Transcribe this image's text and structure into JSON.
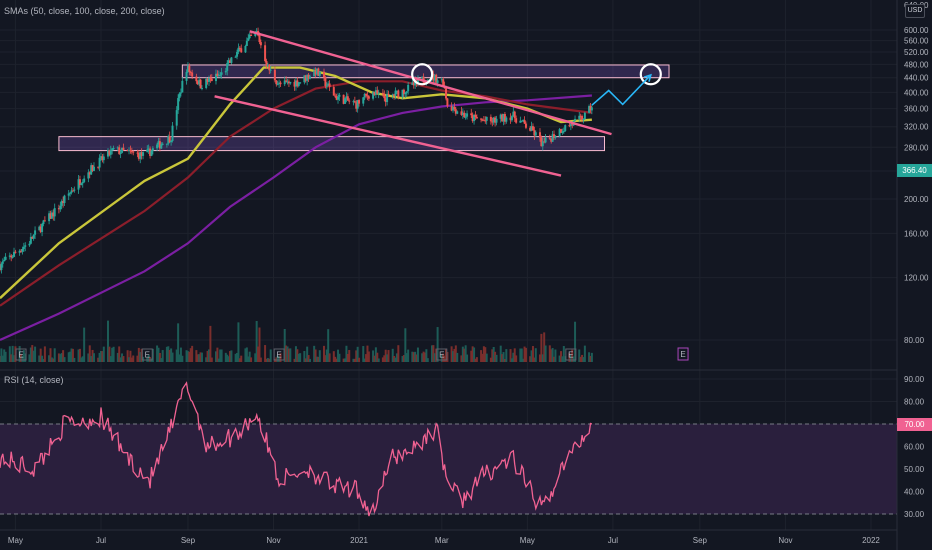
{
  "colors": {
    "background": "#131722",
    "up": "#26a69a",
    "down": "#ef5350",
    "sma50": "#c9c63a",
    "sma100": "#8b1e2b",
    "sma200": "#7b1fa2",
    "pattern": "#f06292",
    "zone": "#7e57c2",
    "projection": "#29b6f6",
    "rsi_line": "#f06292",
    "rsi_band": "#2a1f3d"
  },
  "price_pane": {
    "indicator_label": "SMAs (50, close, 100, close, 200, close)",
    "currency": "USD",
    "last_price_label": "366.40",
    "top_clipped_label": "640.00"
  },
  "rsi_pane": {
    "indicator_label": "RSI (14, close)",
    "last_value_label": "70.00"
  },
  "earnings_marker": "E",
  "chart_data": {
    "type": "candlestick",
    "x_ticks": [
      "May",
      "Jul",
      "Sep",
      "Nov",
      "2021",
      "Mar",
      "May",
      "Jul",
      "Sep",
      "Nov",
      "2022"
    ],
    "y_ticks": [
      "80.00",
      "120.00",
      "160.00",
      "200.00",
      "240.00",
      "280.00",
      "320.00",
      "360.00",
      "400.00",
      "440.00",
      "480.00",
      "520.00",
      "560.00",
      "600.00"
    ],
    "y_scale": "log",
    "close_keypoints": [
      {
        "date": "2020-04-20",
        "close": 130
      },
      {
        "date": "2020-05-10",
        "close": 150
      },
      {
        "date": "2020-06-01",
        "close": 190
      },
      {
        "date": "2020-06-20",
        "close": 235
      },
      {
        "date": "2020-07-10",
        "close": 275
      },
      {
        "date": "2020-08-01",
        "close": 265
      },
      {
        "date": "2020-08-20",
        "close": 300
      },
      {
        "date": "2020-08-31",
        "close": 470
      },
      {
        "date": "2020-09-10",
        "close": 420
      },
      {
        "date": "2020-09-25",
        "close": 450
      },
      {
        "date": "2020-10-10",
        "close": 540
      },
      {
        "date": "2020-10-20",
        "close": 590
      },
      {
        "date": "2020-10-28",
        "close": 470
      },
      {
        "date": "2020-11-05",
        "close": 420
      },
      {
        "date": "2020-11-20",
        "close": 430
      },
      {
        "date": "2020-12-01",
        "close": 460
      },
      {
        "date": "2020-12-15",
        "close": 390
      },
      {
        "date": "2020-12-30",
        "close": 370
      },
      {
        "date": "2021-01-10",
        "close": 400
      },
      {
        "date": "2021-01-20",
        "close": 385
      },
      {
        "date": "2021-02-05",
        "close": 410
      },
      {
        "date": "2021-02-20",
        "close": 445
      },
      {
        "date": "2021-03-02",
        "close": 430
      },
      {
        "date": "2021-03-05",
        "close": 370
      },
      {
        "date": "2021-03-20",
        "close": 340
      },
      {
        "date": "2021-04-05",
        "close": 330
      },
      {
        "date": "2021-04-20",
        "close": 345
      },
      {
        "date": "2021-05-05",
        "close": 310
      },
      {
        "date": "2021-05-12",
        "close": 285
      },
      {
        "date": "2021-05-25",
        "close": 315
      },
      {
        "date": "2021-06-05",
        "close": 330
      },
      {
        "date": "2021-06-12",
        "close": 345
      },
      {
        "date": "2021-06-16",
        "close": 366.4
      }
    ],
    "sma_keypoints": {
      "sma50": [
        {
          "date": "2020-04-20",
          "value": 105
        },
        {
          "date": "2020-06-01",
          "value": 150
        },
        {
          "date": "2020-08-01",
          "value": 225
        },
        {
          "date": "2020-09-01",
          "value": 260
        },
        {
          "date": "2020-10-01",
          "value": 370
        },
        {
          "date": "2020-10-25",
          "value": 470
        },
        {
          "date": "2020-11-20",
          "value": 470
        },
        {
          "date": "2020-12-15",
          "value": 445
        },
        {
          "date": "2021-01-10",
          "value": 400
        },
        {
          "date": "2021-02-01",
          "value": 385
        },
        {
          "date": "2021-03-01",
          "value": 395
        },
        {
          "date": "2021-04-01",
          "value": 385
        },
        {
          "date": "2021-05-01",
          "value": 360
        },
        {
          "date": "2021-05-25",
          "value": 330
        },
        {
          "date": "2021-06-16",
          "value": 335
        }
      ],
      "sma100": [
        {
          "date": "2020-04-20",
          "value": 100
        },
        {
          "date": "2020-06-01",
          "value": 130
        },
        {
          "date": "2020-08-01",
          "value": 185
        },
        {
          "date": "2020-09-01",
          "value": 230
        },
        {
          "date": "2020-10-01",
          "value": 300
        },
        {
          "date": "2020-11-01",
          "value": 360
        },
        {
          "date": "2020-12-01",
          "value": 410
        },
        {
          "date": "2021-01-01",
          "value": 430
        },
        {
          "date": "2021-02-01",
          "value": 430
        },
        {
          "date": "2021-03-01",
          "value": 405
        },
        {
          "date": "2021-04-01",
          "value": 390
        },
        {
          "date": "2021-05-01",
          "value": 370
        },
        {
          "date": "2021-06-16",
          "value": 350
        }
      ],
      "sma200": [
        {
          "date": "2020-04-20",
          "value": 80
        },
        {
          "date": "2020-06-01",
          "value": 95
        },
        {
          "date": "2020-08-01",
          "value": 125
        },
        {
          "date": "2020-09-01",
          "value": 150
        },
        {
          "date": "2020-10-01",
          "value": 190
        },
        {
          "date": "2020-11-01",
          "value": 230
        },
        {
          "date": "2020-12-01",
          "value": 280
        },
        {
          "date": "2021-01-01",
          "value": 325
        },
        {
          "date": "2021-02-01",
          "value": 350
        },
        {
          "date": "2021-03-01",
          "value": 365
        },
        {
          "date": "2021-04-01",
          "value": 375
        },
        {
          "date": "2021-05-01",
          "value": 380
        },
        {
          "date": "2021-06-16",
          "value": 392
        }
      ]
    },
    "annotations": {
      "zones": [
        {
          "from": "2020-08-28",
          "to": "2021-08-10",
          "low": 440,
          "high": 478
        },
        {
          "from": "2020-06-01",
          "to": "2021-06-25",
          "low": 274,
          "high": 300
        }
      ],
      "falling_wedge": {
        "upper": [
          {
            "date": "2020-10-15",
            "value": 595
          },
          {
            "date": "2021-06-30",
            "value": 305
          }
        ],
        "lower": [
          {
            "date": "2020-09-20",
            "value": 390
          },
          {
            "date": "2021-05-25",
            "value": 233
          }
        ]
      },
      "circles": [
        {
          "date": "2021-02-15",
          "value": 450
        },
        {
          "date": "2021-07-28",
          "value": 450
        }
      ],
      "projection_path": [
        {
          "date": "2021-06-16",
          "value": 368
        },
        {
          "date": "2021-06-28",
          "value": 405
        },
        {
          "date": "2021-07-08",
          "value": 370
        },
        {
          "date": "2021-07-28",
          "value": 448
        }
      ]
    },
    "rsi": {
      "y_ticks": [
        "30.00",
        "40.00",
        "50.00",
        "60.00",
        "70.00",
        "80.00",
        "90.00"
      ],
      "band": [
        30,
        70
      ],
      "keypoints": [
        {
          "date": "2020-04-20",
          "value": 55
        },
        {
          "date": "2020-05-15",
          "value": 50
        },
        {
          "date": "2020-06-05",
          "value": 70
        },
        {
          "date": "2020-07-01",
          "value": 73
        },
        {
          "date": "2020-07-20",
          "value": 55
        },
        {
          "date": "2020-08-05",
          "value": 45
        },
        {
          "date": "2020-08-20",
          "value": 68
        },
        {
          "date": "2020-08-31",
          "value": 88
        },
        {
          "date": "2020-09-15",
          "value": 60
        },
        {
          "date": "2020-10-05",
          "value": 65
        },
        {
          "date": "2020-10-20",
          "value": 75
        },
        {
          "date": "2020-11-05",
          "value": 45
        },
        {
          "date": "2020-11-25",
          "value": 50
        },
        {
          "date": "2020-12-15",
          "value": 42
        },
        {
          "date": "2021-01-01",
          "value": 40
        },
        {
          "date": "2021-01-10",
          "value": 30
        },
        {
          "date": "2021-01-25",
          "value": 55
        },
        {
          "date": "2021-02-10",
          "value": 60
        },
        {
          "date": "2021-02-25",
          "value": 68
        },
        {
          "date": "2021-03-05",
          "value": 45
        },
        {
          "date": "2021-03-15",
          "value": 36
        },
        {
          "date": "2021-04-01",
          "value": 48
        },
        {
          "date": "2021-04-20",
          "value": 55
        },
        {
          "date": "2021-05-05",
          "value": 38
        },
        {
          "date": "2021-05-12",
          "value": 32
        },
        {
          "date": "2021-05-25",
          "value": 50
        },
        {
          "date": "2021-06-05",
          "value": 60
        },
        {
          "date": "2021-06-16",
          "value": 70
        }
      ]
    }
  }
}
